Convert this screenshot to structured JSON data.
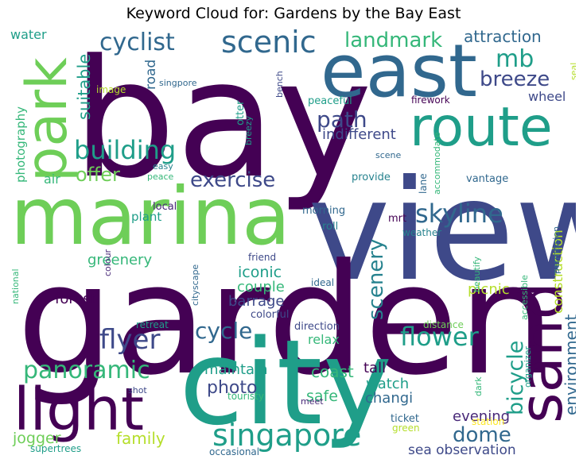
{
  "title": "Keyword Cloud for: Gardens by the Bay East",
  "colors": {
    "dark": "#440154",
    "purple": "#482878",
    "indigo": "#3e4989",
    "blue": "#31688e",
    "teal": "#26828e",
    "green": "#1f9e89",
    "sea": "#35b779",
    "lime": "#6ece58",
    "yellowgreen": "#b5de2b",
    "yellow": "#fde725"
  },
  "words": [
    {
      "t": "bay",
      "c": "dark"
    },
    {
      "t": "view",
      "c": "indigo"
    },
    {
      "t": "garden",
      "c": "dark"
    },
    {
      "t": "city",
      "c": "green"
    },
    {
      "t": "marina",
      "c": "lime"
    },
    {
      "t": "east",
      "c": "blue"
    },
    {
      "t": "park",
      "c": "lime"
    },
    {
      "t": "route",
      "c": "green"
    },
    {
      "t": "light",
      "c": "dark"
    },
    {
      "t": "sand",
      "c": "dark"
    },
    {
      "t": "scenic",
      "c": "blue"
    },
    {
      "t": "cyclist",
      "c": "blue"
    },
    {
      "t": "landmark",
      "c": "sea"
    },
    {
      "t": "attraction",
      "c": "blue"
    },
    {
      "t": "water",
      "c": "green"
    },
    {
      "t": "mb",
      "c": "green"
    },
    {
      "t": "breeze",
      "c": "indigo"
    },
    {
      "t": "building",
      "c": "green"
    },
    {
      "t": "path",
      "c": "indigo"
    },
    {
      "t": "suitable",
      "c": "green"
    },
    {
      "t": "road",
      "c": "blue"
    },
    {
      "t": "photography",
      "c": "sea"
    },
    {
      "t": "offer",
      "c": "lime"
    },
    {
      "t": "exercise",
      "c": "indigo"
    },
    {
      "t": "skyline",
      "c": "blue"
    },
    {
      "t": "flyer",
      "c": "indigo"
    },
    {
      "t": "flower",
      "c": "green"
    },
    {
      "t": "cycle",
      "c": "blue"
    },
    {
      "t": "panoramic",
      "c": "sea"
    },
    {
      "t": "singapore",
      "c": "green"
    },
    {
      "t": "bicycle",
      "c": "green"
    },
    {
      "t": "environment",
      "c": "blue"
    },
    {
      "t": "scenery",
      "c": "teal"
    },
    {
      "t": "dome",
      "c": "blue"
    },
    {
      "t": "photo",
      "c": "indigo"
    },
    {
      "t": "coast",
      "c": "sea"
    },
    {
      "t": "watch",
      "c": "green"
    },
    {
      "t": "changi",
      "c": "blue"
    },
    {
      "t": "safe",
      "c": "sea"
    },
    {
      "t": "family",
      "c": "yellowgreen"
    },
    {
      "t": "jogger",
      "c": "lime"
    },
    {
      "t": "supertrees",
      "c": "green"
    },
    {
      "t": "occasional",
      "c": "blue"
    },
    {
      "t": "sea observation",
      "c": "indigo"
    },
    {
      "t": "evening",
      "c": "purple"
    },
    {
      "t": "tall",
      "c": "dark"
    },
    {
      "t": "maintain",
      "c": "green"
    },
    {
      "t": "iconic",
      "c": "green"
    },
    {
      "t": "couple",
      "c": "sea"
    },
    {
      "t": "barrage",
      "c": "indigo"
    },
    {
      "t": "forest",
      "c": "dark"
    },
    {
      "t": "greenery",
      "c": "sea"
    },
    {
      "t": "plant",
      "c": "green"
    },
    {
      "t": "local",
      "c": "purple"
    },
    {
      "t": "picnic",
      "c": "yellowgreen"
    },
    {
      "t": "relax",
      "c": "sea"
    },
    {
      "t": "construction",
      "c": "yellowgreen"
    },
    {
      "t": "indifferent",
      "c": "indigo"
    },
    {
      "t": "wheel",
      "c": "indigo"
    },
    {
      "t": "singpore",
      "c": "blue"
    },
    {
      "t": "image",
      "c": "yellowgreen"
    },
    {
      "t": "peaceful",
      "c": "green"
    },
    {
      "t": "firework",
      "c": "dark"
    },
    {
      "t": "bench",
      "c": "indigo"
    },
    {
      "t": "seal",
      "c": "yellowgreen"
    },
    {
      "t": "otter",
      "c": "green"
    },
    {
      "t": "breezy",
      "c": "green"
    },
    {
      "t": "scene",
      "c": "blue"
    },
    {
      "t": "easy",
      "c": "teal"
    },
    {
      "t": "peace",
      "c": "sea"
    },
    {
      "t": "air",
      "c": "sea"
    },
    {
      "t": "provide",
      "c": "teal"
    },
    {
      "t": "lane",
      "c": "blue"
    },
    {
      "t": "accommodate",
      "c": "sea"
    },
    {
      "t": "vantage",
      "c": "blue"
    },
    {
      "t": "morning",
      "c": "blue"
    },
    {
      "t": "roll",
      "c": "teal"
    },
    {
      "t": "mrt",
      "c": "dark"
    },
    {
      "t": "weather",
      "c": "teal"
    },
    {
      "t": "beautify",
      "c": "sea"
    },
    {
      "t": "permission",
      "c": "blue"
    },
    {
      "t": "friend",
      "c": "indigo"
    },
    {
      "t": "ideal",
      "c": "blue"
    },
    {
      "t": "cityscape",
      "c": "blue"
    },
    {
      "t": "colour",
      "c": "purple"
    },
    {
      "t": "national",
      "c": "sea"
    },
    {
      "t": "accessible",
      "c": "sea"
    },
    {
      "t": "colorful",
      "c": "indigo"
    },
    {
      "t": "retreat",
      "c": "green"
    },
    {
      "t": "direction",
      "c": "indigo"
    },
    {
      "t": "distance",
      "c": "lime"
    },
    {
      "t": "organizer",
      "c": "green"
    },
    {
      "t": "dark",
      "c": "sea"
    },
    {
      "t": "shot",
      "c": "indigo"
    },
    {
      "t": "touristy",
      "c": "sea"
    },
    {
      "t": "meet",
      "c": "purple"
    },
    {
      "t": "ticket",
      "c": "blue"
    },
    {
      "t": "station",
      "c": "yellow"
    },
    {
      "t": "green",
      "c": "yellowgreen"
    }
  ]
}
